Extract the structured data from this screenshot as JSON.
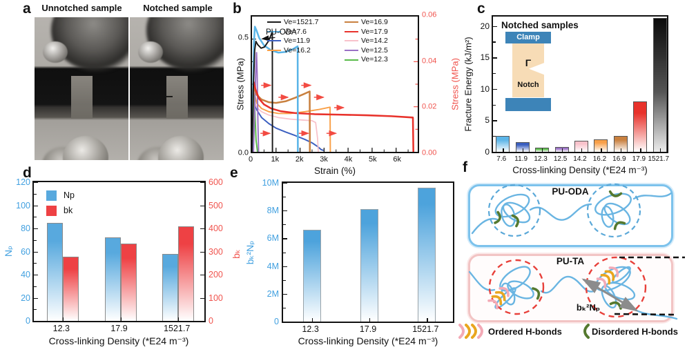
{
  "panels": {
    "a": {
      "label": "a",
      "title_left": "Unnotched sample",
      "title_right": "Notched sample"
    },
    "b": {
      "label": "b"
    },
    "c": {
      "label": "c",
      "inset": {
        "clamp": "Clamp",
        "gamma": "Γ",
        "notch": "Notch"
      }
    },
    "d": {
      "label": "d"
    },
    "e": {
      "label": "e"
    },
    "f": {
      "label": "f",
      "box1_label": "PU-ODA",
      "box2_label": "PU-TA",
      "arrow_label": "bₖ²Nₚ",
      "legend_ordered": "Ordered H-bonds",
      "legend_disordered": "Disordered H-bonds"
    }
  },
  "chart_data": [
    {
      "id": "b",
      "type": "line",
      "xlabel": "Strain (%)",
      "ylabel_left": "Stress (MPa)",
      "ylabel_right": "Stress (MPa)",
      "xlim": [
        0,
        6900
      ],
      "ylim_left": [
        0,
        0.6
      ],
      "ylim_right": [
        0,
        0.06
      ],
      "annotation": "PU-ODA",
      "axis_right_color": "#f0534d",
      "arrow_color": "#f24b42",
      "xticks": [
        {
          "v": 0,
          "label": "0"
        },
        {
          "v": 1000,
          "label": "1k"
        },
        {
          "v": 2000,
          "label": "2k"
        },
        {
          "v": 3000,
          "label": "3k"
        },
        {
          "v": 4000,
          "label": "4k"
        },
        {
          "v": 5000,
          "label": "5k"
        },
        {
          "v": 6000,
          "label": "6k"
        }
      ],
      "yticks_left": [
        {
          "v": 0,
          "label": "0.0"
        },
        {
          "v": 0.5,
          "label": "0.5"
        }
      ],
      "yticks_right": [
        {
          "v": 0,
          "label": "0.00"
        },
        {
          "v": 0.02,
          "label": "0.02"
        },
        {
          "v": 0.04,
          "label": "0.04"
        },
        {
          "v": 0.06,
          "label": "0.06"
        }
      ],
      "series": [
        {
          "name": "Ve=1521.7",
          "color": "#1a1a1a",
          "col": 1,
          "lw": 2,
          "points": [
            [
              0,
              0
            ],
            [
              60,
              0.3
            ],
            [
              110,
              0.45
            ],
            [
              160,
              0.49
            ],
            [
              240,
              0.475
            ],
            [
              380,
              0.46
            ],
            [
              520,
              0.465
            ],
            [
              680,
              0.49
            ],
            [
              800,
              0.52
            ],
            [
              845,
              0.535
            ],
            [
              850,
              0
            ]
          ]
        },
        {
          "name": "Ve=7.6",
          "color": "#5bb5e8",
          "col": 1,
          "lw": 2.6,
          "points": [
            [
              0,
              0
            ],
            [
              40,
              0.25
            ],
            [
              80,
              0.48
            ],
            [
              120,
              0.555
            ],
            [
              180,
              0.54
            ],
            [
              300,
              0.505
            ],
            [
              500,
              0.472
            ],
            [
              800,
              0.45
            ],
            [
              1100,
              0.44
            ],
            [
              1400,
              0.443
            ],
            [
              1700,
              0.455
            ],
            [
              1900,
              0.468
            ],
            [
              1910,
              0
            ]
          ]
        },
        {
          "name": "Ve=11.9",
          "color": "#3b5fc0",
          "col": 1,
          "lw": 2,
          "points": [
            [
              0,
              0
            ],
            [
              50,
              0.21
            ],
            [
              90,
              0.225
            ],
            [
              200,
              0.185
            ],
            [
              400,
              0.152
            ],
            [
              700,
              0.125
            ],
            [
              1000,
              0.105
            ],
            [
              1400,
              0.088
            ],
            [
              1800,
              0.072
            ],
            [
              2200,
              0.055
            ],
            [
              2500,
              0.04
            ],
            [
              2750,
              0.022
            ],
            [
              2880,
              0.01
            ],
            [
              2980,
              0.006
            ]
          ]
        },
        {
          "name": "Ve=16.2",
          "color": "#f9a048",
          "col": 1,
          "lw": 2,
          "points": [
            [
              0,
              0
            ],
            [
              50,
              0.24
            ],
            [
              90,
              0.26
            ],
            [
              200,
              0.215
            ],
            [
              400,
              0.192
            ],
            [
              700,
              0.178
            ],
            [
              1100,
              0.17
            ],
            [
              1600,
              0.17
            ],
            [
              2200,
              0.178
            ],
            [
              2800,
              0.188
            ],
            [
              3250,
              0.198
            ],
            [
              3260,
              0
            ]
          ]
        },
        {
          "name": "Ve=16.9",
          "color": "#c9803f",
          "col": 2,
          "lw": 2.6,
          "points": [
            [
              0,
              0
            ],
            [
              50,
              0.26
            ],
            [
              90,
              0.285
            ],
            [
              200,
              0.252
            ],
            [
              400,
              0.232
            ],
            [
              700,
              0.22
            ],
            [
              1000,
              0.217
            ],
            [
              1400,
              0.224
            ],
            [
              1800,
              0.24
            ],
            [
              2150,
              0.256
            ],
            [
              2400,
              0.268
            ],
            [
              2410,
              0
            ]
          ]
        },
        {
          "name": "Ve=17.9",
          "color": "#e8322b",
          "col": 2,
          "lw": 2.6,
          "points": [
            [
              0,
              0
            ],
            [
              40,
              0.27
            ],
            [
              70,
              0.31
            ],
            [
              150,
              0.275
            ],
            [
              300,
              0.235
            ],
            [
              500,
              0.21
            ],
            [
              800,
              0.192
            ],
            [
              1200,
              0.18
            ],
            [
              1800,
              0.172
            ],
            [
              2600,
              0.167
            ],
            [
              3600,
              0.165
            ],
            [
              4800,
              0.162
            ],
            [
              5800,
              0.158
            ],
            [
              6700,
              0.152
            ],
            [
              6720,
              0
            ]
          ]
        },
        {
          "name": "Ve=14.2",
          "color": "#f8c2cb",
          "col": 2,
          "lw": 1.8,
          "points": [
            [
              0,
              0
            ],
            [
              40,
              0.21
            ],
            [
              70,
              0.23
            ],
            [
              200,
              0.196
            ],
            [
              400,
              0.178
            ],
            [
              700,
              0.163
            ],
            [
              1100,
              0.152
            ],
            [
              1600,
              0.145
            ],
            [
              2100,
              0.141
            ],
            [
              2500,
              0.138
            ],
            [
              2650,
              0.13
            ],
            [
              2730,
              0.06
            ],
            [
              2760,
              0
            ]
          ]
        },
        {
          "name": "Ve=12.5",
          "color": "#9a70c5",
          "col": 2,
          "lw": 2,
          "points": [
            [
              60,
              0
            ],
            [
              110,
              0.18
            ],
            [
              160,
              0.38
            ],
            [
              190,
              0.44
            ],
            [
              215,
              0.34
            ],
            [
              245,
              0.13
            ],
            [
              275,
              0
            ]
          ]
        },
        {
          "name": "Ve=12.3",
          "color": "#58bb48",
          "col": 2,
          "lw": 2,
          "points": [
            [
              30,
              0
            ],
            [
              70,
              0.2
            ],
            [
              100,
              0.25
            ],
            [
              130,
              0.15
            ],
            [
              170,
              0.05
            ],
            [
              230,
              0
            ]
          ]
        }
      ],
      "arrows": [
        [
          380,
          0.295
        ],
        [
          2050,
          0.295
        ],
        [
          1100,
          0.242
        ],
        [
          2580,
          0.242
        ],
        [
          3420,
          0.196
        ],
        [
          350,
          0.082
        ],
        [
          1950,
          0.082
        ],
        [
          3100,
          0.082
        ]
      ]
    },
    {
      "id": "c",
      "type": "bar",
      "title": "Notched samples",
      "xlabel": "Cross-linking Density (*E24 m⁻³)",
      "ylabel": "Fracture Energy (kJ/m²)",
      "ylim": [
        0,
        21.5
      ],
      "yticks": [
        {
          "v": 0,
          "label": "0"
        },
        {
          "v": 5,
          "label": "5"
        },
        {
          "v": 10,
          "label": "10"
        },
        {
          "v": 15,
          "label": "15"
        },
        {
          "v": 20,
          "label": "20"
        }
      ],
      "categories": [
        "7.6",
        "11.9",
        "12.3",
        "12.5",
        "14.2",
        "16.2",
        "16.9",
        "17.9",
        "1521.7"
      ],
      "values": [
        2.5,
        1.5,
        0.7,
        0.75,
        1.8,
        2.0,
        2.5,
        8.0,
        21.3
      ],
      "colors": [
        "#5bb5e8",
        "#3b5fc0",
        "#58bb48",
        "#9a70c5",
        "#f8c2cb",
        "#f9a048",
        "#c9803f",
        "#e8322b",
        "#0f0f0f"
      ]
    },
    {
      "id": "d",
      "type": "grouped-bar-dual-axis",
      "xlabel": "Cross-linking Density (*E24 m⁻³)",
      "ylabel_left": "Nₚ",
      "ylabel_right": "bₖ",
      "categories": [
        "12.3",
        "17.9",
        "1521.7"
      ],
      "series": [
        {
          "name": "Np",
          "axis": "left",
          "color": "#58a9de",
          "values": [
            85,
            72,
            58
          ]
        },
        {
          "name": "bk",
          "axis": "right",
          "color": "#ee4144",
          "values": [
            278,
            335,
            408
          ]
        }
      ],
      "ylim_left": [
        0,
        120
      ],
      "yticks_left": [
        0,
        20,
        40,
        60,
        80,
        100,
        120
      ],
      "ylim_right": [
        0,
        600
      ],
      "yticks_right": [
        0,
        100,
        200,
        300,
        400,
        500,
        600
      ],
      "axis_left_color": "#41a0e0",
      "axis_right_color": "#f0534d"
    },
    {
      "id": "e",
      "type": "bar",
      "xlabel": "Cross-linking Density (*E24 m⁻³)",
      "ylabel": "bₖ²Nₚ",
      "categories": [
        "12.3",
        "17.9",
        "1521.7"
      ],
      "values": [
        6600000,
        8100000,
        9650000
      ],
      "ylim": [
        0,
        10000000
      ],
      "yticks": [
        {
          "v": 0,
          "label": "0"
        },
        {
          "v": 2000000,
          "label": "2M"
        },
        {
          "v": 4000000,
          "label": "4M"
        },
        {
          "v": 6000000,
          "label": "6M"
        },
        {
          "v": 8000000,
          "label": "8M"
        },
        {
          "v": 10000000,
          "label": "10M"
        }
      ],
      "bar_color": "#4da3dc",
      "axis_color": "#41a0e0"
    }
  ],
  "colors": {
    "chain_blue": "#6ab5e2",
    "dashed_circle_blue": "#5aa8d8",
    "dashed_circle_red": "#e8403a",
    "ordered_pink": "#f3aab6",
    "ordered_gold": "#e9a61f",
    "disordered_green": "#55792f",
    "clamp_blue": "#3d84b8",
    "sample_tan": "#f7dcb6"
  }
}
